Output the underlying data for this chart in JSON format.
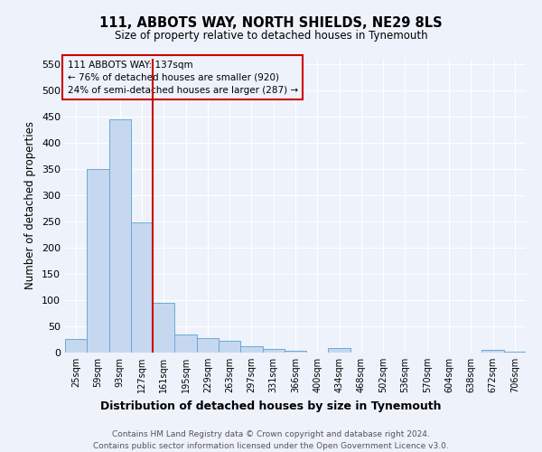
{
  "title1": "111, ABBOTS WAY, NORTH SHIELDS, NE29 8LS",
  "title2": "Size of property relative to detached houses in Tynemouth",
  "xlabel": "Distribution of detached houses by size in Tynemouth",
  "ylabel": "Number of detached properties",
  "footer1": "Contains HM Land Registry data © Crown copyright and database right 2024.",
  "footer2": "Contains public sector information licensed under the Open Government Licence v3.0.",
  "annotation_line1": "111 ABBOTS WAY: 137sqm",
  "annotation_line2": "← 76% of detached houses are smaller (920)",
  "annotation_line3": "24% of semi-detached houses are larger (287) →",
  "categories": [
    "25sqm",
    "59sqm",
    "93sqm",
    "127sqm",
    "161sqm",
    "195sqm",
    "229sqm",
    "263sqm",
    "297sqm",
    "331sqm",
    "366sqm",
    "400sqm",
    "434sqm",
    "468sqm",
    "502sqm",
    "536sqm",
    "570sqm",
    "604sqm",
    "638sqm",
    "672sqm",
    "706sqm"
  ],
  "values": [
    25,
    350,
    445,
    248,
    95,
    35,
    28,
    22,
    12,
    7,
    4,
    0,
    8,
    0,
    0,
    0,
    0,
    0,
    0,
    5,
    2
  ],
  "bar_color": "#c5d8f0",
  "bar_edge_color": "#6aaad4",
  "vline_index": 3,
  "vline_color": "#cc0000",
  "ylim": [
    0,
    560
  ],
  "yticks": [
    0,
    50,
    100,
    150,
    200,
    250,
    300,
    350,
    400,
    450,
    500,
    550
  ],
  "annotation_box_color": "#cc0000",
  "background_color": "#eef2fb",
  "grid_color": "#ffffff",
  "fig_width": 6.0,
  "fig_height": 5.0,
  "dpi": 100
}
